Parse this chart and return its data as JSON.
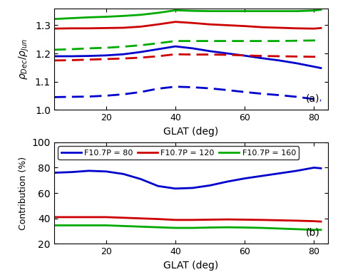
{
  "glat": [
    5,
    10,
    15,
    20,
    25,
    30,
    35,
    40,
    45,
    50,
    55,
    60,
    65,
    70,
    75,
    80,
    82
  ],
  "panel_a": {
    "solid_blue": [
      1.19,
      1.19,
      1.191,
      1.193,
      1.197,
      1.205,
      1.215,
      1.225,
      1.218,
      1.208,
      1.2,
      1.192,
      1.183,
      1.175,
      1.165,
      1.153,
      1.148
    ],
    "solid_red": [
      1.288,
      1.289,
      1.289,
      1.29,
      1.291,
      1.295,
      1.303,
      1.312,
      1.308,
      1.303,
      1.3,
      1.297,
      1.293,
      1.291,
      1.289,
      1.288,
      1.29
    ],
    "solid_green": [
      1.322,
      1.325,
      1.328,
      1.33,
      1.333,
      1.337,
      1.344,
      1.353,
      1.351,
      1.35,
      1.35,
      1.35,
      1.35,
      1.35,
      1.35,
      1.352,
      1.355
    ],
    "dashed_blue": [
      1.045,
      1.046,
      1.047,
      1.05,
      1.055,
      1.063,
      1.075,
      1.082,
      1.08,
      1.076,
      1.07,
      1.063,
      1.057,
      1.052,
      1.046,
      1.038,
      1.033
    ],
    "dashed_red": [
      1.175,
      1.176,
      1.178,
      1.18,
      1.182,
      1.185,
      1.19,
      1.197,
      1.196,
      1.196,
      1.195,
      1.193,
      1.191,
      1.19,
      1.189,
      1.188,
      1.189
    ],
    "dashed_green": [
      1.213,
      1.215,
      1.218,
      1.22,
      1.224,
      1.229,
      1.236,
      1.244,
      1.244,
      1.244,
      1.244,
      1.244,
      1.244,
      1.244,
      1.245,
      1.246,
      1.248
    ],
    "ylabel": "$\\rho_{Dec}/\\rho_{Jun}$",
    "ylim": [
      1.0,
      1.36
    ],
    "yticks": [
      1.0,
      1.1,
      1.2,
      1.3
    ],
    "label": "(a)"
  },
  "panel_b": {
    "blue": [
      76.0,
      76.5,
      77.5,
      77.0,
      75.0,
      71.0,
      65.5,
      63.5,
      64.0,
      66.0,
      69.0,
      71.5,
      73.5,
      75.5,
      77.5,
      80.0,
      79.5
    ],
    "red": [
      41.0,
      41.0,
      41.0,
      41.0,
      40.5,
      40.0,
      39.5,
      38.8,
      38.8,
      39.0,
      39.2,
      39.0,
      38.8,
      38.5,
      38.2,
      37.8,
      37.5
    ],
    "green": [
      34.5,
      34.5,
      34.5,
      34.5,
      34.0,
      33.5,
      33.0,
      32.5,
      32.5,
      32.8,
      33.0,
      32.8,
      32.5,
      32.0,
      31.5,
      31.0,
      31.0
    ],
    "ylabel": "Contribution (%)",
    "ylim": [
      20,
      100
    ],
    "yticks": [
      20,
      40,
      60,
      80,
      100
    ],
    "label": "(b)"
  },
  "colors": {
    "blue": "#0000cc",
    "red": "#cc0000",
    "green": "#00aa00"
  },
  "xlabel": "GLAT (deg)",
  "xticks": [
    20,
    40,
    60,
    80
  ],
  "xlim": [
    5,
    84
  ],
  "legend_labels": [
    "F10.7P = 80",
    "F10.7P = 120",
    "F10.7P = 160"
  ],
  "linewidth": 2.0
}
